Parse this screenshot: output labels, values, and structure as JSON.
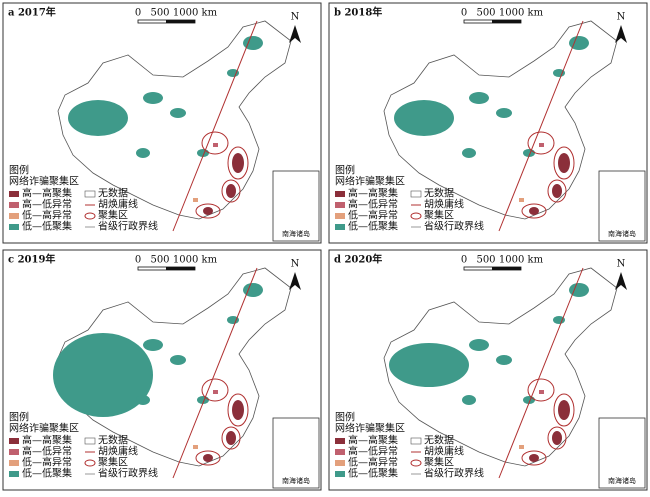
{
  "panels": [
    {
      "label": "a 2017年"
    },
    {
      "label": "b 2018年"
    },
    {
      "label": "c 2019年"
    },
    {
      "label": "d 2020年"
    }
  ],
  "scale_bar": {
    "ticks": [
      "0",
      "500",
      "1000 km"
    ]
  },
  "north": "N",
  "legend": {
    "title": "图例",
    "subtitle": "网络诈骗聚集区",
    "items": [
      {
        "label": "高—高聚集",
        "color": "#8b2f3a"
      },
      {
        "label": "高—低异常",
        "color": "#c0606e"
      },
      {
        "label": "低—高异常",
        "color": "#e3a07c"
      },
      {
        "label": "低—低聚集",
        "color": "#3f9a8a"
      }
    ],
    "symbols": [
      "无数据",
      "胡焕庸线",
      "聚集区",
      "省级行政界线"
    ]
  },
  "inset_label": "南海诸岛"
}
